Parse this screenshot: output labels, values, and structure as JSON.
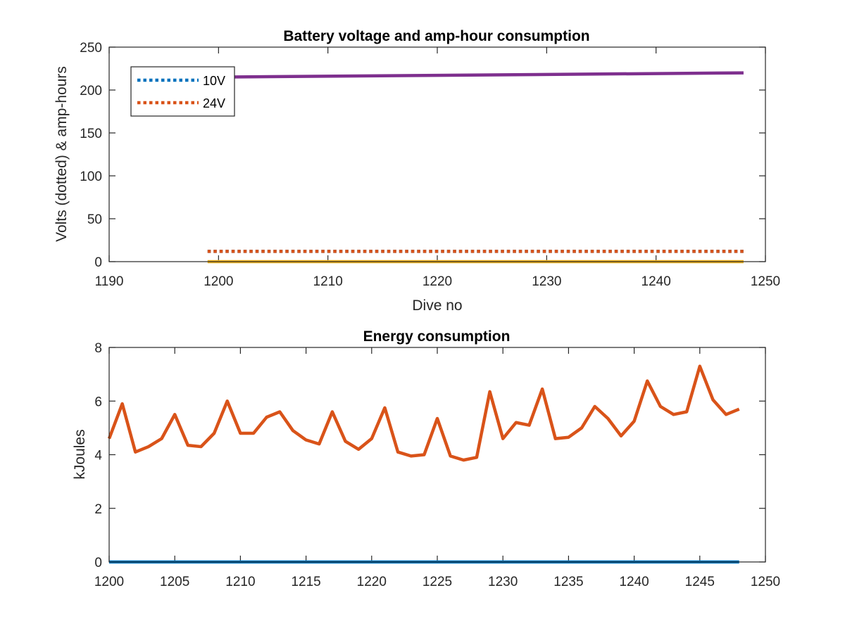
{
  "colors": {
    "blue": "#0072BD",
    "orange": "#D95319",
    "yellow": "#EDB120",
    "purple": "#7E2F8E",
    "axis": "#262626"
  },
  "chart_data": [
    {
      "type": "line",
      "title": "Battery voltage and amp-hour consumption",
      "xlabel": "Dive no",
      "ylabel": "Volts (dotted) & amp-hours",
      "xlim": [
        1190,
        1250
      ],
      "ylim": [
        0,
        250
      ],
      "xticks": [
        "1190",
        "1200",
        "1210",
        "1220",
        "1230",
        "1240",
        "1250"
      ],
      "yticks": [
        "0",
        "50",
        "100",
        "150",
        "200",
        "250"
      ],
      "legend_position": "top-left",
      "x": [
        1199,
        1248
      ],
      "series": [
        {
          "name": "10V",
          "style": "dotted",
          "color": "#0072BD",
          "x": [
            1199,
            1248
          ],
          "values": [
            12,
            12
          ]
        },
        {
          "name": "24V",
          "style": "dotted",
          "color": "#D95319",
          "x": [
            1199,
            1248
          ],
          "values": [
            12,
            12
          ]
        },
        {
          "style": "solid",
          "color": "#EDB120",
          "x": [
            1199,
            1248
          ],
          "values": [
            0,
            0
          ]
        },
        {
          "style": "solid",
          "color": "#7E2F8E",
          "x": [
            1199,
            1248
          ],
          "values": [
            215,
            220
          ]
        }
      ]
    },
    {
      "type": "line",
      "title": "Energy consumption",
      "xlabel": "",
      "ylabel": "kJoules",
      "xlim": [
        1200,
        1250
      ],
      "ylim": [
        0,
        8
      ],
      "xticks": [
        "1200",
        "1205",
        "1210",
        "1215",
        "1220",
        "1225",
        "1230",
        "1235",
        "1240",
        "1245",
        "1250"
      ],
      "yticks": [
        "0",
        "2",
        "4",
        "6",
        "8"
      ],
      "x": [
        1200,
        1201,
        1202,
        1203,
        1204,
        1205,
        1206,
        1207,
        1208,
        1209,
        1210,
        1211,
        1212,
        1213,
        1214,
        1215,
        1216,
        1217,
        1218,
        1219,
        1220,
        1221,
        1222,
        1223,
        1224,
        1225,
        1226,
        1227,
        1228,
        1229,
        1230,
        1231,
        1232,
        1233,
        1234,
        1235,
        1236,
        1237,
        1238,
        1239,
        1240,
        1241,
        1242,
        1243,
        1244,
        1245,
        1246,
        1247,
        1248
      ],
      "series": [
        {
          "style": "solid",
          "color": "#D95319",
          "values": [
            4.6,
            5.9,
            4.1,
            4.3,
            4.6,
            5.5,
            4.35,
            4.3,
            4.8,
            6.0,
            4.8,
            4.8,
            5.4,
            5.6,
            4.9,
            4.55,
            4.4,
            5.6,
            4.5,
            4.2,
            4.6,
            5.75,
            4.1,
            3.95,
            4.0,
            5.35,
            3.95,
            3.8,
            3.9,
            6.35,
            4.6,
            5.2,
            5.1,
            6.45,
            4.6,
            4.65,
            5.0,
            5.8,
            5.35,
            4.7,
            5.25,
            6.75,
            5.8,
            5.5,
            5.6,
            7.3,
            6.05,
            5.5,
            5.7
          ]
        },
        {
          "style": "solid",
          "color": "#0072BD",
          "x": [
            1200,
            1248
          ],
          "values": [
            0,
            0
          ]
        }
      ]
    }
  ]
}
